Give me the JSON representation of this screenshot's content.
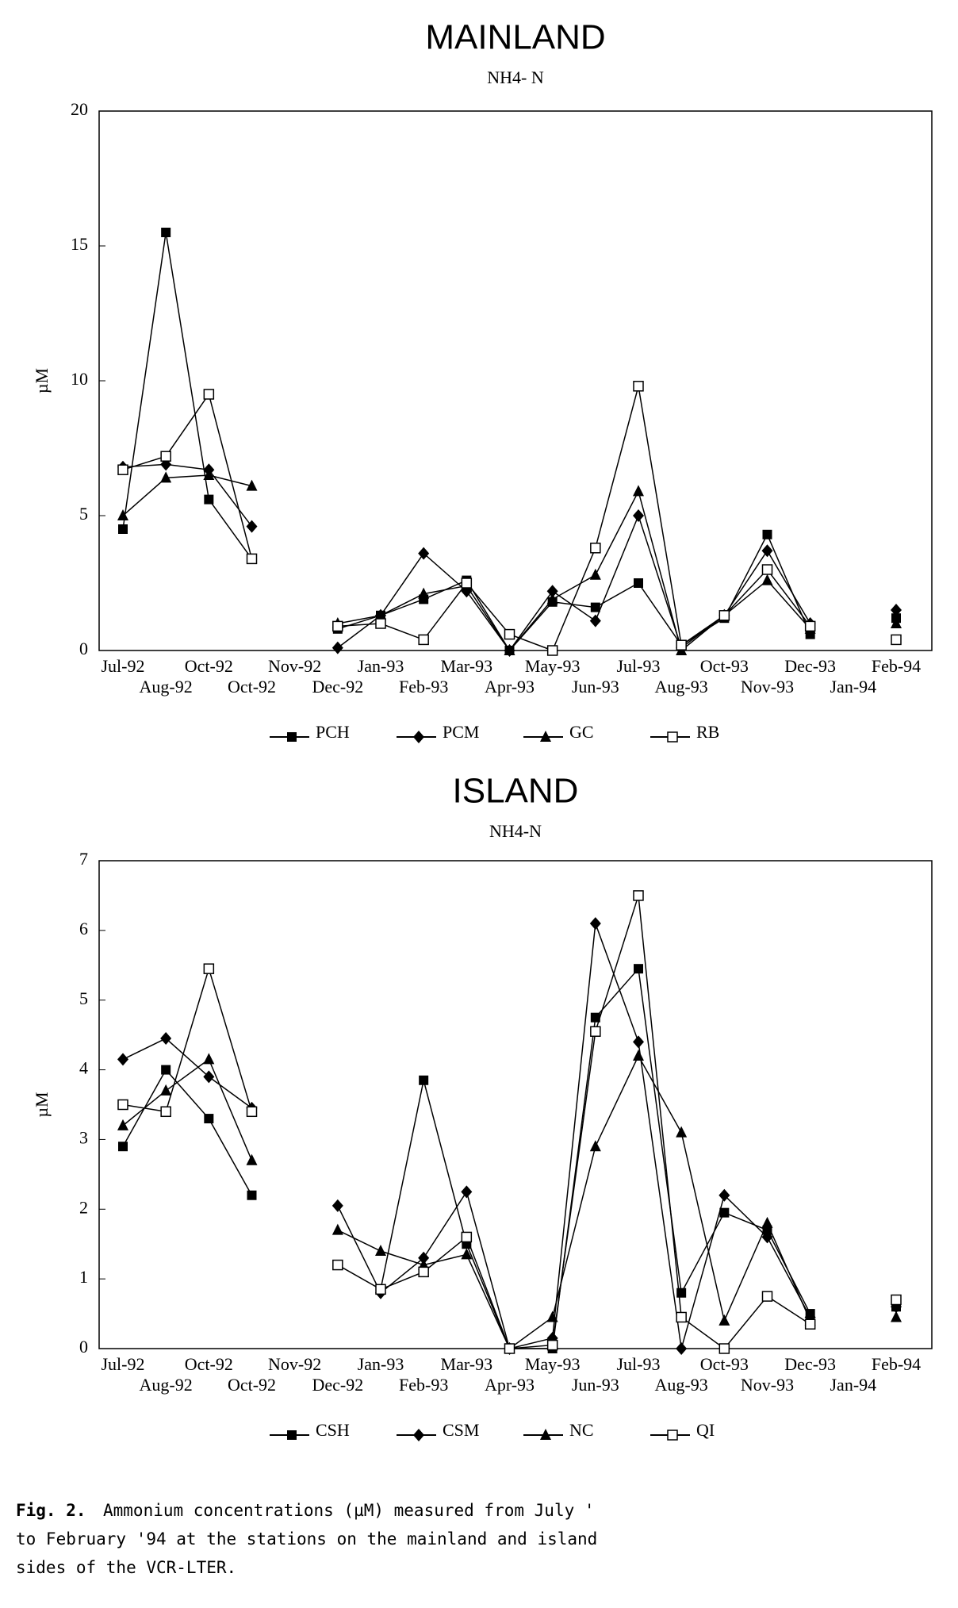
{
  "chart_data": [
    {
      "type": "line",
      "title": "MAINLAND",
      "subtitle": "NH4- N",
      "y_label": "µM",
      "categories": [
        "Jul-92",
        "Aug-92",
        "Oct-92",
        "Oct-92",
        "Nov-92",
        "Dec-92",
        "Jan-93",
        "Feb-93",
        "Mar-93",
        "Apr-93",
        "May-93",
        "Jun-93",
        "Jul-93",
        "Aug-93",
        "Oct-93",
        "Nov-93",
        "Dec-93",
        "Jan-94",
        "Feb-94"
      ],
      "ylim": [
        0,
        20
      ],
      "yticks": [
        0,
        5,
        10,
        15,
        20
      ],
      "series": [
        {
          "name": "PCH",
          "color": "#000000",
          "marker": "square",
          "values": [
            4.5,
            15.5,
            5.6,
            3.4,
            null,
            0.8,
            1.3,
            1.9,
            2.6,
            0,
            1.8,
            1.6,
            2.5,
            0.2,
            1.2,
            4.3,
            0.6,
            null,
            1.2
          ]
        },
        {
          "name": "PCM",
          "color": "#000000",
          "marker": "diamond",
          "values": [
            6.8,
            6.9,
            6.7,
            4.6,
            null,
            0.1,
            1.3,
            3.6,
            2.2,
            0,
            2.2,
            1.1,
            5.0,
            0.1,
            1.3,
            3.7,
            1.0,
            null,
            1.5
          ]
        },
        {
          "name": "GC",
          "color": "#000000",
          "marker": "triangle",
          "values": [
            5.0,
            6.4,
            6.5,
            6.1,
            null,
            1.0,
            1.3,
            2.1,
            2.4,
            0,
            1.9,
            2.8,
            5.9,
            0,
            1.3,
            2.6,
            0.8,
            null,
            1.0
          ]
        },
        {
          "name": "RB",
          "color": "#000000",
          "marker": "open-square",
          "values": [
            6.7,
            7.2,
            9.5,
            3.4,
            null,
            0.9,
            1.0,
            0.4,
            2.5,
            0.6,
            0,
            3.8,
            9.8,
            0.2,
            1.3,
            3.0,
            0.9,
            null,
            0.4
          ]
        }
      ]
    },
    {
      "type": "line",
      "title": "ISLAND",
      "subtitle": "NH4-N",
      "y_label": "µM",
      "categories": [
        "Jul-92",
        "Aug-92",
        "Oct-92",
        "Oct-92",
        "Nov-92",
        "Dec-92",
        "Jan-93",
        "Feb-93",
        "Mar-93",
        "Apr-93",
        "May-93",
        "Jun-93",
        "Jul-93",
        "Aug-93",
        "Oct-93",
        "Nov-93",
        "Dec-93",
        "Jan-94",
        "Feb-94"
      ],
      "ylim": [
        0,
        7
      ],
      "yticks": [
        0,
        1,
        2,
        3,
        4,
        5,
        6,
        7
      ],
      "series": [
        {
          "name": "CSH",
          "color": "#000000",
          "marker": "square",
          "values": [
            2.9,
            4.0,
            3.3,
            2.2,
            null,
            null,
            0.85,
            3.85,
            1.5,
            0,
            0,
            4.75,
            5.45,
            0.8,
            1.95,
            1.7,
            0.5,
            null,
            0.6
          ]
        },
        {
          "name": "CSM",
          "color": "#000000",
          "marker": "diamond",
          "values": [
            4.15,
            4.45,
            3.9,
            3.45,
            null,
            2.05,
            0.8,
            1.3,
            2.25,
            0,
            0.15,
            6.1,
            4.4,
            0,
            2.2,
            1.6,
            0.45,
            null,
            0.6
          ]
        },
        {
          "name": "NC",
          "color": "#000000",
          "marker": "triangle",
          "values": [
            3.2,
            3.7,
            4.15,
            2.7,
            null,
            1.7,
            1.4,
            1.2,
            1.35,
            0,
            0.45,
            2.9,
            4.2,
            3.1,
            0.4,
            1.8,
            0.4,
            null,
            0.45
          ]
        },
        {
          "name": "QI",
          "color": "#000000",
          "marker": "open-square",
          "values": [
            3.5,
            3.4,
            5.45,
            3.4,
            null,
            1.2,
            0.85,
            1.1,
            1.6,
            0,
            0.05,
            4.55,
            6.5,
            0.45,
            0,
            0.75,
            0.35,
            null,
            0.7
          ]
        }
      ]
    }
  ],
  "caption": {
    "label": "Fig. 2.",
    "lines": [
      "Ammonium concentrations (µM) measured from July '",
      "to February '94 at the stations on the mainland and island",
      "sides of the VCR-LTER."
    ]
  }
}
